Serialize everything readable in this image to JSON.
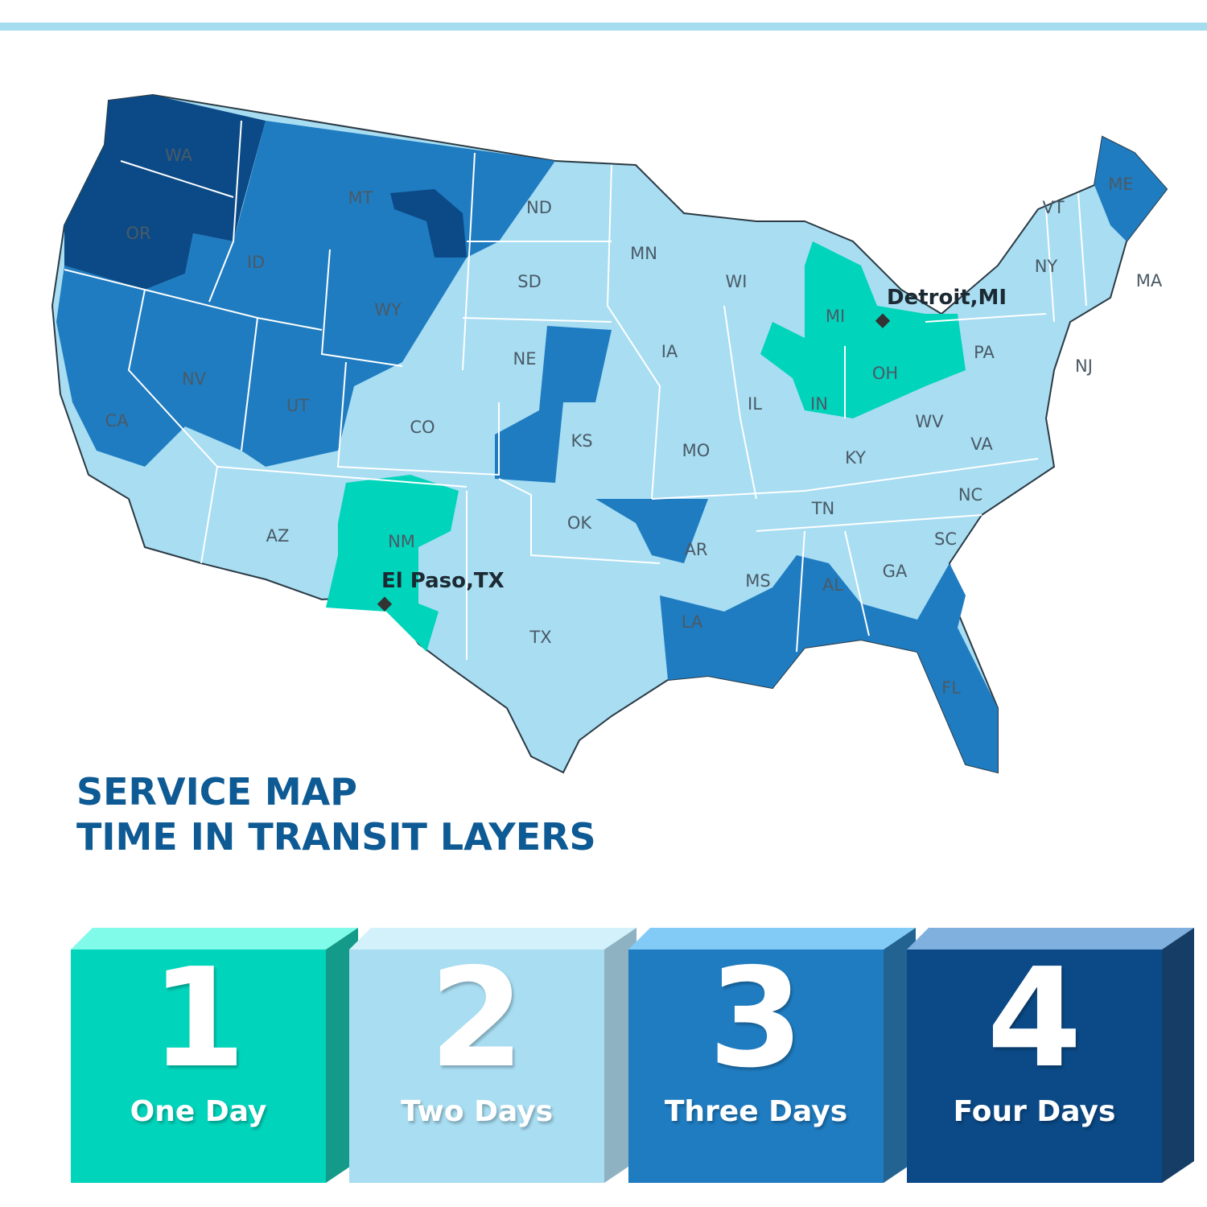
{
  "title": {
    "line1": "SERVICE MAP",
    "line2": "TIME IN TRANSIT LAYERS"
  },
  "colors": {
    "one_day": "#00d4bb",
    "two_days": "#a8ddf2",
    "three_days": "#1f7cc1",
    "four_days": "#0b4a87",
    "title": "#0e5a94"
  },
  "legend": [
    {
      "number": "1",
      "label": "One Day",
      "front": "#00d4bb",
      "top": "#80fbe9",
      "side": "#149a88"
    },
    {
      "number": "2",
      "label": "Two Days",
      "front": "#a8ddf2",
      "top": "#d2f1fb",
      "side": "#8fb2c3"
    },
    {
      "number": "3",
      "label": "Three Days",
      "front": "#1f7cc1",
      "top": "#83cbf7",
      "side": "#236392"
    },
    {
      "number": "4",
      "label": "Four Days",
      "front": "#0b4a87",
      "top": "#7fb0de",
      "side": "#163d66"
    }
  ],
  "cities": [
    {
      "name": "Detroit,MI",
      "icon": "diamond-marker"
    },
    {
      "name": "El Paso,TX",
      "icon": "diamond-marker"
    }
  ],
  "states": [
    "WA",
    "OR",
    "CA",
    "ID",
    "NV",
    "MT",
    "WY",
    "UT",
    "AZ",
    "CO",
    "NM",
    "ND",
    "SD",
    "NE",
    "KS",
    "OK",
    "TX",
    "MN",
    "IA",
    "MO",
    "AR",
    "LA",
    "WI",
    "IL",
    "MI",
    "IN",
    "OH",
    "KY",
    "TN",
    "MS",
    "AL",
    "GA",
    "FL",
    "SC",
    "NC",
    "VA",
    "WV",
    "PA",
    "NY",
    "VT",
    "ME",
    "MA",
    "NJ"
  ]
}
